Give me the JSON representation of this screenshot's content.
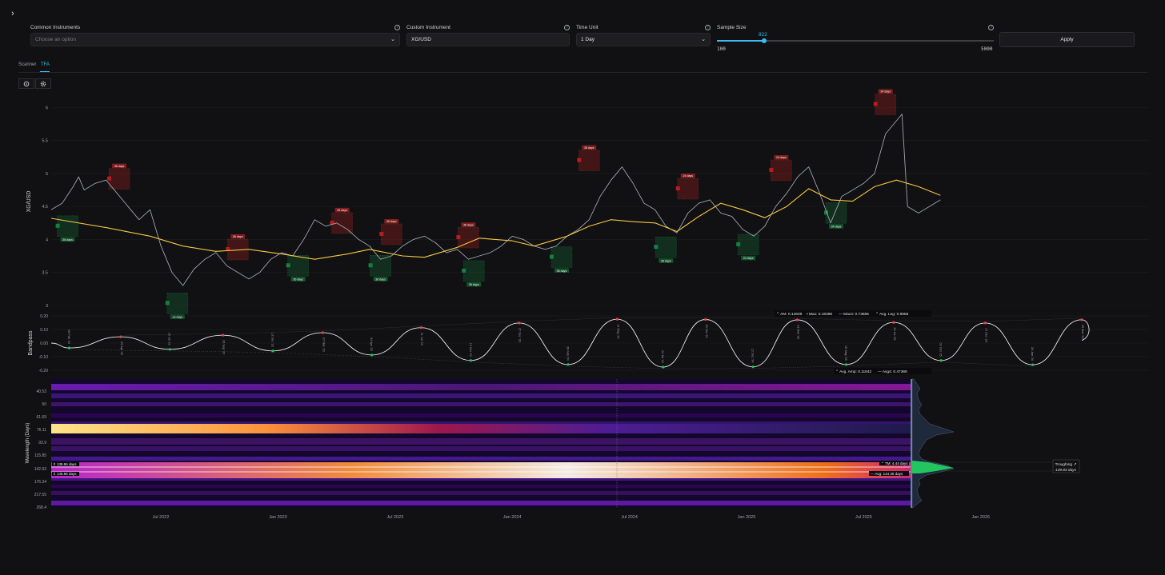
{
  "controls": {
    "common_instruments": {
      "label": "Common Instruments",
      "placeholder": "Choose an option"
    },
    "custom_instrument": {
      "label": "Custom Instrument",
      "value": "XG/USD"
    },
    "time_unit": {
      "label": "Time Unit",
      "value": "1 Day"
    },
    "sample_size": {
      "label": "Sample Size",
      "value": "922",
      "min": "100",
      "max": "5000",
      "level_fraction": 0.17
    },
    "apply_label": "Apply"
  },
  "tabs": [
    {
      "label": "Scanner"
    },
    {
      "label": "TFA"
    }
  ],
  "active_tab": "TFA",
  "colors": {
    "accent": "#38bdf8",
    "price_line": "#9ca3af",
    "trend_line": "#f5c542",
    "peak": "#ef4444",
    "trough": "#22c55e",
    "bandpass": "#e5e7eb"
  },
  "chart_data": [
    {
      "type": "line",
      "ylabel": "XG/USD",
      "y_ticks": [
        3,
        3.5,
        4,
        4.5,
        5,
        5.5,
        6
      ],
      "ylim": [
        2.95,
        6.2
      ],
      "x_ticks": [
        "Jul 2022",
        "Jan 2023",
        "Jul 2023",
        "Jan 2024",
        "Jul 2024",
        "Jan 2025",
        "Jul 2025",
        "Jan 2026"
      ],
      "x_tick_pos": [
        0.05,
        0.13,
        0.21,
        0.29,
        0.37,
        0.45,
        0.53,
        0.61
      ],
      "price": [
        [
          0.0,
          4.45
        ],
        [
          0.01,
          4.55
        ],
        [
          0.02,
          4.8
        ],
        [
          0.025,
          4.95
        ],
        [
          0.03,
          4.75
        ],
        [
          0.04,
          4.85
        ],
        [
          0.05,
          4.9
        ],
        [
          0.06,
          4.7
        ],
        [
          0.07,
          4.5
        ],
        [
          0.08,
          4.3
        ],
        [
          0.09,
          4.45
        ],
        [
          0.1,
          3.9
        ],
        [
          0.11,
          3.5
        ],
        [
          0.12,
          3.3
        ],
        [
          0.13,
          3.55
        ],
        [
          0.14,
          3.7
        ],
        [
          0.15,
          3.8
        ],
        [
          0.16,
          3.6
        ],
        [
          0.17,
          3.5
        ],
        [
          0.18,
          3.4
        ],
        [
          0.19,
          3.5
        ],
        [
          0.2,
          3.7
        ],
        [
          0.21,
          3.8
        ],
        [
          0.22,
          3.75
        ],
        [
          0.23,
          4.0
        ],
        [
          0.24,
          4.3
        ],
        [
          0.25,
          4.2
        ],
        [
          0.26,
          4.25
        ],
        [
          0.27,
          4.15
        ],
        [
          0.28,
          4.0
        ],
        [
          0.29,
          3.9
        ],
        [
          0.3,
          3.7
        ],
        [
          0.31,
          3.75
        ],
        [
          0.32,
          3.9
        ],
        [
          0.33,
          4.0
        ],
        [
          0.34,
          4.05
        ],
        [
          0.35,
          3.95
        ],
        [
          0.36,
          3.8
        ],
        [
          0.37,
          3.85
        ],
        [
          0.38,
          3.7
        ],
        [
          0.39,
          3.75
        ],
        [
          0.4,
          3.8
        ],
        [
          0.41,
          3.9
        ],
        [
          0.42,
          4.05
        ],
        [
          0.43,
          4.0
        ],
        [
          0.44,
          3.9
        ],
        [
          0.45,
          3.85
        ],
        [
          0.46,
          3.9
        ],
        [
          0.47,
          4.05
        ],
        [
          0.48,
          4.15
        ],
        [
          0.49,
          4.3
        ],
        [
          0.5,
          4.65
        ],
        [
          0.51,
          4.9
        ],
        [
          0.52,
          5.1
        ],
        [
          0.53,
          4.85
        ],
        [
          0.54,
          4.55
        ],
        [
          0.55,
          4.45
        ],
        [
          0.56,
          4.2
        ],
        [
          0.57,
          4.1
        ],
        [
          0.58,
          4.4
        ],
        [
          0.59,
          4.55
        ],
        [
          0.6,
          4.6
        ],
        [
          0.61,
          4.4
        ],
        [
          0.62,
          4.35
        ],
        [
          0.63,
          4.15
        ],
        [
          0.64,
          4.05
        ],
        [
          0.65,
          4.2
        ],
        [
          0.66,
          4.5
        ],
        [
          0.67,
          4.7
        ],
        [
          0.68,
          4.95
        ],
        [
          0.69,
          5.1
        ],
        [
          0.7,
          4.7
        ],
        [
          0.71,
          4.25
        ],
        [
          0.72,
          4.65
        ],
        [
          0.73,
          4.75
        ],
        [
          0.74,
          4.85
        ],
        [
          0.75,
          5.0
        ],
        [
          0.76,
          5.6
        ],
        [
          0.77,
          5.8
        ],
        [
          0.775,
          5.9
        ],
        [
          0.78,
          4.5
        ],
        [
          0.79,
          4.4
        ],
        [
          0.8,
          4.5
        ],
        [
          0.81,
          4.6
        ]
      ],
      "trend": [
        [
          0.0,
          4.32
        ],
        [
          0.05,
          4.18
        ],
        [
          0.09,
          4.05
        ],
        [
          0.12,
          3.9
        ],
        [
          0.15,
          3.82
        ],
        [
          0.18,
          3.85
        ],
        [
          0.21,
          3.78
        ],
        [
          0.24,
          3.7
        ],
        [
          0.27,
          3.78
        ],
        [
          0.29,
          3.85
        ],
        [
          0.32,
          3.75
        ],
        [
          0.34,
          3.73
        ],
        [
          0.37,
          3.88
        ],
        [
          0.39,
          4.02
        ],
        [
          0.42,
          3.98
        ],
        [
          0.44,
          3.9
        ],
        [
          0.47,
          4.05
        ],
        [
          0.49,
          4.2
        ],
        [
          0.51,
          4.3
        ],
        [
          0.53,
          4.27
        ],
        [
          0.55,
          4.25
        ],
        [
          0.57,
          4.12
        ],
        [
          0.59,
          4.35
        ],
        [
          0.61,
          4.55
        ],
        [
          0.63,
          4.45
        ],
        [
          0.65,
          4.33
        ],
        [
          0.67,
          4.5
        ],
        [
          0.69,
          4.77
        ],
        [
          0.71,
          4.6
        ],
        [
          0.73,
          4.58
        ],
        [
          0.75,
          4.8
        ],
        [
          0.77,
          4.9
        ],
        [
          0.79,
          4.8
        ],
        [
          0.81,
          4.67
        ]
      ],
      "peaks": [
        {
          "x": 0.062,
          "y": 4.87,
          "label": "36 days"
        },
        {
          "x": 0.17,
          "y": 3.8,
          "label": "36 days"
        },
        {
          "x": 0.265,
          "y": 4.2,
          "label": "36 days"
        },
        {
          "x": 0.31,
          "y": 4.03,
          "label": "36 days"
        },
        {
          "x": 0.38,
          "y": 3.98,
          "label": "36 days"
        },
        {
          "x": 0.49,
          "y": 5.15,
          "label": "38 days"
        },
        {
          "x": 0.58,
          "y": 4.72,
          "label": "24 days"
        },
        {
          "x": 0.665,
          "y": 5.0,
          "label": "24 days"
        },
        {
          "x": 0.76,
          "y": 6.0,
          "label": "34 days"
        }
      ],
      "troughs": [
        {
          "x": 0.015,
          "y": 4.25,
          "label": "36 days"
        },
        {
          "x": 0.115,
          "y": 3.08,
          "label": "36 days"
        },
        {
          "x": 0.225,
          "y": 3.65,
          "label": "36 days"
        },
        {
          "x": 0.3,
          "y": 3.65,
          "label": "36 days"
        },
        {
          "x": 0.385,
          "y": 3.57,
          "label": "36 days"
        },
        {
          "x": 0.465,
          "y": 3.78,
          "label": "36 days"
        },
        {
          "x": 0.56,
          "y": 3.93,
          "label": "36 days"
        },
        {
          "x": 0.635,
          "y": 3.97,
          "label": "24 days"
        },
        {
          "x": 0.715,
          "y": 4.45,
          "label": "34 days"
        }
      ]
    },
    {
      "type": "line",
      "ylabel": "Bandpass",
      "y_ticks": [
        "0.20",
        "0.10",
        "0.00",
        "-0.10",
        "-0.20"
      ],
      "y_tick_values": [
        0.2,
        0.1,
        0.0,
        -0.1,
        -0.2
      ],
      "ylim": [
        -0.23,
        0.23
      ],
      "stats_top": {
        "am": "AM: 0.14608",
        "max": "Max: 0.18396",
        "max4": "Max4: 0.73585",
        "avg_leg": "Avg. Leg: 0.9958"
      },
      "stats_bottom": {
        "avg_amp": "Avg. Amp: 0.11842",
        "avg4": "Avg4: 0.47369"
      },
      "peaks": [
        {
          "x": 0.085,
          "y": 0.046,
          "date": "25 Apr '22"
        },
        {
          "x": 0.21,
          "y": 0.058,
          "date": "26 Sep '22"
        },
        {
          "x": 0.332,
          "y": 0.077,
          "date": "07 Mar '23"
        },
        {
          "x": 0.452,
          "y": 0.114,
          "date": "31 Jul '23"
        },
        {
          "x": 0.572,
          "y": 0.148,
          "date": "27 Dec '23"
        },
        {
          "x": 0.692,
          "y": 0.176,
          "date": "14 May '24"
        },
        {
          "x": 0.8,
          "y": 0.174,
          "date": "25 Oct '24"
        },
        {
          "x": 0.912,
          "y": 0.171,
          "date": "23 Mar '25"
        },
        {
          "x": 1.03,
          "y": 0.152,
          "date": "25 Jul '25"
        },
        {
          "x": 1.142,
          "y": 0.148,
          "date": "14 Dec '25"
        },
        {
          "x": 1.26,
          "y": 0.172,
          "date": "05 Mar '26"
        }
      ],
      "troughs": [
        {
          "x": 0.022,
          "y": -0.036,
          "date": "08 Feb '22"
        },
        {
          "x": 0.145,
          "y": -0.046,
          "date": "15 Jul '22"
        },
        {
          "x": 0.271,
          "y": -0.058,
          "date": "13 Dec '22"
        },
        {
          "x": 0.392,
          "y": -0.088,
          "date": "04 Apr '23"
        },
        {
          "x": 0.513,
          "y": -0.128,
          "date": "12 Oct '23"
        },
        {
          "x": 0.632,
          "y": -0.158,
          "date": "28 Feb '24"
        },
        {
          "x": 0.748,
          "y": -0.177,
          "date": "24 Jul '24"
        },
        {
          "x": 0.858,
          "y": -0.175,
          "date": "12 Dec '24"
        },
        {
          "x": 0.972,
          "y": -0.158,
          "date": "09 May '25"
        },
        {
          "x": 1.088,
          "y": -0.128,
          "date": "02 Oct '25"
        },
        {
          "x": 1.2,
          "y": -0.16,
          "date": "26 Jan '26"
        }
      ]
    },
    {
      "type": "heatmap",
      "ylabel": "Wavelength (Days)",
      "y_ticks": [
        "40.53",
        "50",
        "61.69",
        "76.11",
        "93.9",
        "115.85",
        "142.93",
        "176.34",
        "217.55",
        "268.4"
      ],
      "x_ticks": [
        "Jul 2022",
        "Jan 2023",
        "Jul 2023",
        "Jan 2024",
        "Jul 2024",
        "Jan 2025",
        "Jul 2025",
        "Jan 2026"
      ],
      "markers": {
        "upper": "139.96 days",
        "lower": "145.96 days",
        "tm": "TM: 4.44 days",
        "avg": "Avg: 144.45 days",
        "troughing_label": "Troughing",
        "troughing_value": "139.83 days"
      }
    }
  ]
}
